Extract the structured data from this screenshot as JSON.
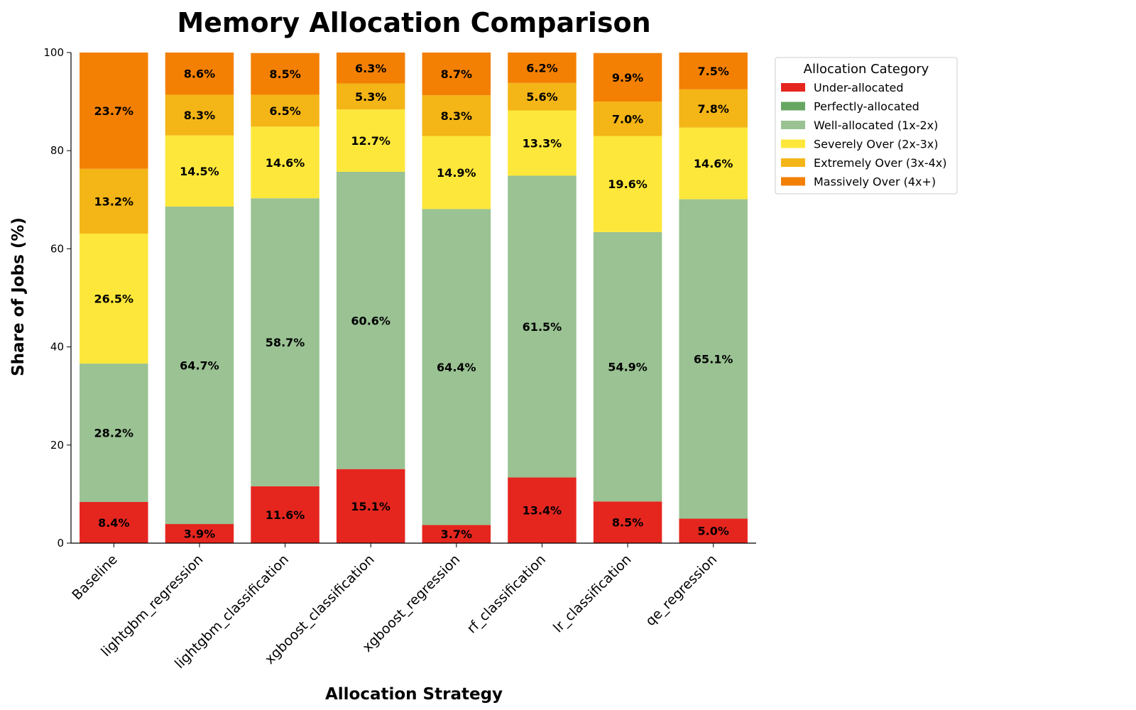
{
  "chart_data": {
    "type": "bar",
    "stacked": true,
    "title": "Memory Allocation Comparison",
    "xlabel": "Allocation Strategy",
    "ylabel": "Share of Jobs (%)",
    "ylim": [
      0,
      100
    ],
    "yticks": [
      "0",
      "20",
      "40",
      "60",
      "80",
      "100"
    ],
    "grid": false,
    "legend_placement": "outside-right",
    "legend_title": "Allocation Category",
    "categories": [
      "Baseline",
      "lightgbm_regression",
      "lightgbm_classification",
      "xgboost_classification",
      "xgboost_regression",
      "rf_classification",
      "lr_classification",
      "qe_regression"
    ],
    "series": [
      {
        "name": "Under-allocated",
        "color": "#e5261f",
        "values": [
          8.4,
          3.9,
          11.6,
          15.1,
          3.7,
          13.4,
          8.5,
          5.0
        ],
        "labels": [
          "8.4%",
          "3.9%",
          "11.6%",
          "15.1%",
          "3.7%",
          "13.4%",
          "8.5%",
          "5.0%"
        ]
      },
      {
        "name": "Perfectly-allocated",
        "color": "#66a661",
        "values": [
          0,
          0,
          0,
          0,
          0,
          0,
          0,
          0
        ],
        "labels": [
          "",
          "",
          "",
          "",
          "",
          "",
          "",
          ""
        ]
      },
      {
        "name": "Well-allocated (1x-2x)",
        "color": "#9ac293",
        "values": [
          28.2,
          64.7,
          58.7,
          60.6,
          64.4,
          61.5,
          54.9,
          65.1
        ],
        "labels": [
          "28.2%",
          "64.7%",
          "58.7%",
          "60.6%",
          "64.4%",
          "61.5%",
          "54.9%",
          "65.1%"
        ]
      },
      {
        "name": "Severely Over (2x-3x)",
        "color": "#fde73b",
        "values": [
          26.5,
          14.5,
          14.6,
          12.7,
          14.9,
          13.3,
          19.6,
          14.6
        ],
        "labels": [
          "26.5%",
          "14.5%",
          "14.6%",
          "12.7%",
          "14.9%",
          "13.3%",
          "19.6%",
          "14.6%"
        ]
      },
      {
        "name": "Extremely Over (3x-4x)",
        "color": "#f4b516",
        "values": [
          13.2,
          8.3,
          6.5,
          5.3,
          8.3,
          5.6,
          7.0,
          7.8
        ],
        "labels": [
          "13.2%",
          "8.3%",
          "6.5%",
          "5.3%",
          "8.3%",
          "5.6%",
          "7.0%",
          "7.8%"
        ]
      },
      {
        "name": "Massively Over (4x+)",
        "color": "#f38003",
        "values": [
          23.7,
          8.6,
          8.5,
          6.3,
          8.7,
          6.2,
          9.9,
          7.5
        ],
        "labels": [
          "23.7%",
          "8.6%",
          "8.5%",
          "6.3%",
          "8.7%",
          "6.2%",
          "9.9%",
          "7.5%"
        ]
      }
    ]
  }
}
